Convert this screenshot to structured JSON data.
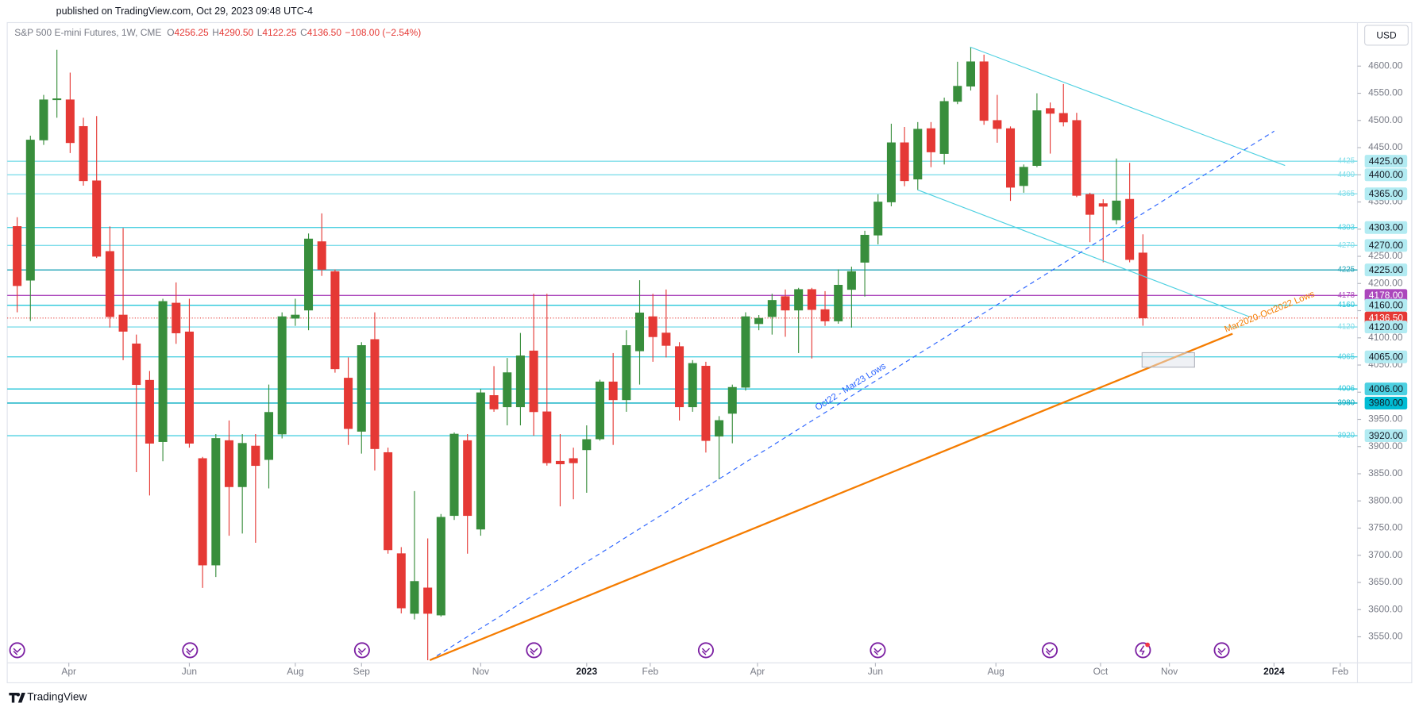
{
  "chart_data": {
    "type": "candlestick",
    "published": "published on TradingView.com, Oct 29, 2023 09:48 UTC-4",
    "brand": "TradingView",
    "currency": "USD",
    "legend": {
      "symbol": "S&P 500 E-mini Futures, 1W, CME",
      "fields": [
        {
          "key": "O",
          "value": "4256.25"
        },
        {
          "key": "H",
          "value": "4290.50"
        },
        {
          "key": "L",
          "value": "4122.25"
        },
        {
          "key": "C",
          "value": "4136.50"
        }
      ],
      "change": "−108.00 (−2.54%)"
    },
    "up_color": "#388e3c",
    "down_color": "#e53935",
    "open": [
      4305,
      4206,
      4464,
      4538,
      4538,
      4489,
      4389,
      4259,
      4142,
      4089,
      4022,
      3909,
      4164,
      4111,
      3878,
      3682,
      3911,
      3826,
      3901,
      3876,
      3923,
      4136,
      4151,
      4277,
      4222,
      4026,
      3928,
      4097,
      3889,
      3703,
      3593,
      3640,
      3590,
      3773,
      3911,
      3748,
      3994,
      3973,
      3973,
      4076,
      3964,
      3873,
      3878,
      3894,
      3914,
      4019,
      3986,
      4076,
      4139,
      4109,
      4084,
      3973,
      4048,
      3919,
      3961,
      4009,
      4126,
      4139,
      4176,
      4151,
      4189,
      4152,
      4131,
      4189,
      4239,
      4289,
      4350,
      4459,
      4392,
      4485,
      4439,
      4535,
      4563,
      4608,
      4500,
      4485,
      4380,
      4417,
      4522,
      4513,
      4500,
      4364,
      4347,
      4317,
      4355,
      4256.25
    ],
    "high": [
      4322,
      4472,
      4547,
      4630,
      4588,
      4505,
      4508,
      4305,
      4302,
      4106,
      4039,
      4172,
      4202,
      4172,
      3881,
      3923,
      3948,
      3923,
      3923,
      4014,
      4147,
      4172,
      4292,
      4329,
      4226,
      4064,
      4092,
      4147,
      3898,
      3715,
      3818,
      3731,
      3776,
      3926,
      3923,
      4006,
      4048,
      4063,
      4109,
      4181,
      4181,
      3923,
      3898,
      3939,
      4023,
      4072,
      4114,
      4206,
      4181,
      4189,
      4092,
      4059,
      4056,
      3956,
      4014,
      4147,
      4142,
      4181,
      4189,
      4192,
      4192,
      4186,
      4226,
      4231,
      4297,
      4364,
      4494,
      4488,
      4497,
      4497,
      4542,
      4608,
      4635,
      4621,
      4547,
      4489,
      4419,
      4550,
      4533,
      4567,
      4514,
      4367,
      4355,
      4430,
      4422,
      4290.5
    ],
    "low": [
      4147,
      4131,
      4455,
      4505,
      4440,
      4380,
      4247,
      4119,
      4059,
      3853,
      3810,
      3873,
      4089,
      3898,
      3640,
      3660,
      3736,
      3740,
      3723,
      3823,
      3915,
      4122,
      4114,
      4214,
      4036,
      3903,
      3887,
      3856,
      3703,
      3593,
      3582,
      3507,
      3587,
      3765,
      3703,
      3736,
      3964,
      3939,
      3939,
      3920,
      3865,
      3790,
      3803,
      3815,
      3911,
      3903,
      3964,
      4014,
      4056,
      4064,
      3948,
      3964,
      3889,
      3840,
      3906,
      4003,
      4114,
      4106,
      4102,
      4072,
      4062,
      4122,
      4126,
      4119,
      4176,
      4272,
      4342,
      4379,
      4372,
      4414,
      4419,
      4530,
      4555,
      4492,
      4459,
      4352,
      4367,
      4414,
      4439,
      4489,
      4359,
      4276,
      4239,
      4309,
      4239,
      4122.25
    ],
    "close": [
      4196,
      4464,
      4538,
      4540,
      4459,
      4389,
      4250,
      4139,
      4112,
      4014,
      3906,
      4167,
      4109,
      3906,
      3682,
      3915,
      3826,
      3906,
      3865,
      3963,
      4139,
      4142,
      4282,
      4226,
      4043,
      3933,
      4086,
      3896,
      3710,
      3603,
      3652,
      3593,
      3770,
      3923,
      3773,
      3999,
      3969,
      4036,
      4067,
      3964,
      3870,
      3868,
      3870,
      3913,
      4019,
      3986,
      4086,
      4146,
      4102,
      4086,
      3973,
      4053,
      3911,
      3948,
      4009,
      4139,
      4136,
      4169,
      4151,
      4189,
      4152,
      4131,
      4197,
      4222,
      4289,
      4350,
      4459,
      4389,
      4484,
      4442,
      4535,
      4563,
      4608,
      4500,
      4485,
      4377,
      4414,
      4518,
      4513,
      4497,
      4362,
      4327,
      4342,
      4352,
      4244,
      4136.5
    ],
    "xlim": [
      -0.75,
      101.2
    ],
    "xticks": [
      {
        "value": 3.9,
        "label": "Apr"
      },
      {
        "value": 13.0,
        "label": "Jun"
      },
      {
        "value": 21.0,
        "label": "Aug"
      },
      {
        "value": 26.0,
        "label": "Sep"
      },
      {
        "value": 35.0,
        "label": "Nov"
      },
      {
        "value": 43.0,
        "label": "2023"
      },
      {
        "value": 47.8,
        "label": "Feb"
      },
      {
        "value": 55.9,
        "label": "Apr"
      },
      {
        "value": 64.8,
        "label": "Jun"
      },
      {
        "value": 73.9,
        "label": "Aug"
      },
      {
        "value": 81.8,
        "label": "Oct"
      },
      {
        "value": 87.0,
        "label": "Nov"
      },
      {
        "value": 94.9,
        "label": "2024"
      },
      {
        "value": 99.9,
        "label": "Feb"
      }
    ],
    "ylim": [
      3502,
      4680
    ],
    "yticks": [
      {
        "value": 3550,
        "label": "3550.00"
      },
      {
        "value": 3600,
        "label": "3600.00"
      },
      {
        "value": 3650,
        "label": "3650.00"
      },
      {
        "value": 3700,
        "label": "3700.00"
      },
      {
        "value": 3750,
        "label": "3750.00"
      },
      {
        "value": 3800,
        "label": "3800.00"
      },
      {
        "value": 3850,
        "label": "3850.00"
      },
      {
        "value": 3900,
        "label": "3900.00"
      },
      {
        "value": 3950,
        "label": "3950.00"
      },
      {
        "value": 4000,
        "label": "4000.00"
      },
      {
        "value": 4050,
        "label": "4050.00"
      },
      {
        "value": 4100,
        "label": "4100.00"
      },
      {
        "value": 4150,
        "label": "4150.00"
      },
      {
        "value": 4200,
        "label": "4200.00"
      },
      {
        "value": 4250,
        "label": "4250.00"
      },
      {
        "value": 4300,
        "label": "4300.00"
      },
      {
        "value": 4350,
        "label": "4350.00"
      },
      {
        "value": 4400,
        "label": "4400.00"
      },
      {
        "value": 4450,
        "label": "4450.00"
      },
      {
        "value": 4500,
        "label": "4500.00"
      },
      {
        "value": 4550,
        "label": "4550.00"
      },
      {
        "value": 4600,
        "label": "4600.00"
      }
    ],
    "levels": [
      {
        "value": 4425,
        "label": "4425.00",
        "color": "#80deea",
        "box": "#b2ebf2",
        "text_color": "#131722"
      },
      {
        "value": 4400,
        "label": "4400.00",
        "color": "#80deea",
        "box": "#b2ebf2",
        "text_color": "#131722"
      },
      {
        "value": 4365,
        "label": "4365.00",
        "color": "#80deea",
        "box": "#b2ebf2",
        "text_color": "#131722"
      },
      {
        "value": 4303,
        "label": "4303.00",
        "color": "#4dd0e1",
        "box": "#b2ebf2",
        "text_color": "#131722"
      },
      {
        "value": 4270,
        "label": "4270.00",
        "color": "#80deea",
        "box": "#b2ebf2",
        "text_color": "#131722"
      },
      {
        "value": 4225,
        "label": "4225.00",
        "color": "#26a6b8",
        "box": "#b2ebf2",
        "text_color": "#131722"
      },
      {
        "value": 4178,
        "label": "4178.00",
        "color": "#ab47bc",
        "box": "#ab47bc",
        "text_color": "#ffffff"
      },
      {
        "value": 4160,
        "label": "4160.00",
        "color": "#26c6da",
        "box": "#b2ebf2",
        "text_color": "#131722"
      },
      {
        "value": 4136.5,
        "label": "4136.50",
        "color": "#e53935",
        "box": "#e53935",
        "text_color": "#ffffff",
        "style": "dotted"
      },
      {
        "value": 4120,
        "label": "4120.00",
        "color": "#80deea",
        "box": "#b2ebf2",
        "text_color": "#131722"
      },
      {
        "value": 4065,
        "label": "4065.00",
        "color": "#4dd0e1",
        "box": "#b2ebf2",
        "text_color": "#131722"
      },
      {
        "value": 4006,
        "label": "4006.00",
        "color": "#26c6da",
        "box": "#4dd0e1",
        "text_color": "#131722"
      },
      {
        "value": 3980,
        "label": "3980.00",
        "color": "#00acc1",
        "box": "#00bcd4",
        "text_color": "#131722"
      },
      {
        "value": 3920,
        "label": "3920.00",
        "color": "#4dd0e1",
        "box": "#b2ebf2",
        "text_color": "#131722"
      }
    ],
    "annotations": [
      "Oct22 - Mar23 Lows",
      "Mar2020-Oct2022 Lows"
    ]
  }
}
